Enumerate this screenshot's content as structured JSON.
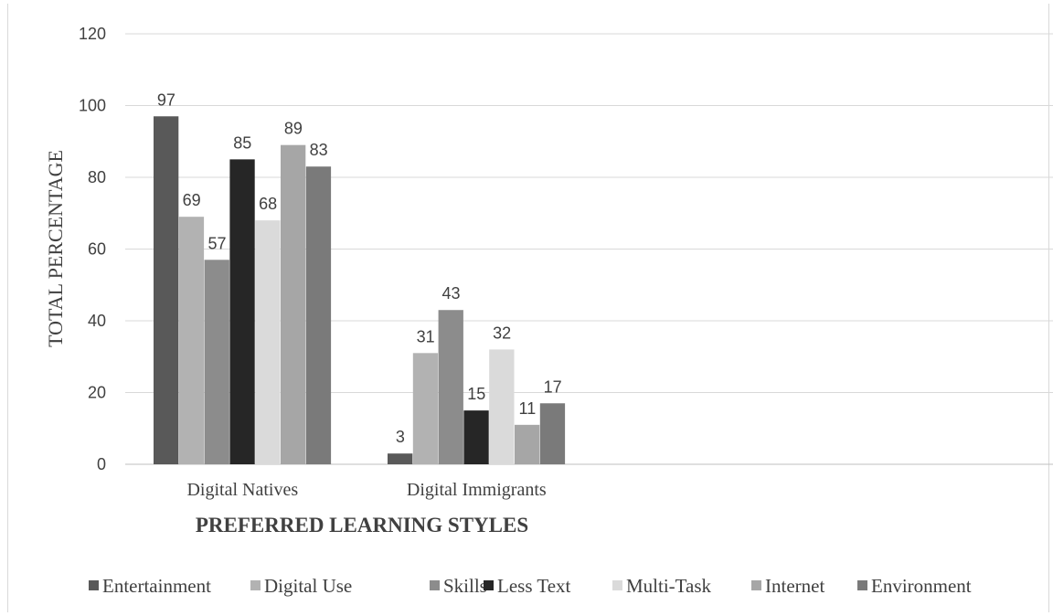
{
  "chart_data": {
    "type": "bar",
    "title": "",
    "xlabel": "PREFERRED LEARNING STYLES",
    "ylabel": "TOTAL PERCENTAGE",
    "ylim": [
      0,
      120
    ],
    "yticks": [
      0,
      20,
      40,
      60,
      80,
      100,
      120
    ],
    "grid": true,
    "legend_position": "bottom",
    "categories": [
      "Digital Natives",
      "Digital Immigrants"
    ],
    "series": [
      {
        "name": "Entertainment",
        "values": [
          97,
          3
        ],
        "color": "#595959"
      },
      {
        "name": "Digital Use",
        "values": [
          69,
          31
        ],
        "color": "#b2b2b2"
      },
      {
        "name": "Skills",
        "values": [
          57,
          43
        ],
        "color": "#8c8c8c"
      },
      {
        "name": "Less Text",
        "values": [
          85,
          15
        ],
        "color": "#262626"
      },
      {
        "name": "Multi-Task",
        "values": [
          68,
          32
        ],
        "color": "#dadada"
      },
      {
        "name": "Internet",
        "values": [
          89,
          11
        ],
        "color": "#a6a6a6"
      },
      {
        "name": "Environment",
        "values": [
          83,
          17
        ],
        "color": "#7a7a7a"
      }
    ]
  }
}
